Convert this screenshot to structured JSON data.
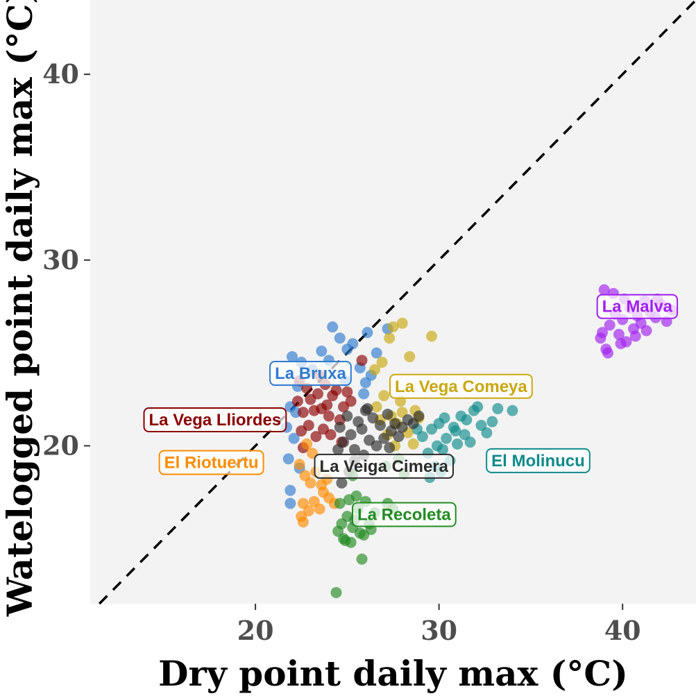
{
  "chart_data": {
    "type": "scatter",
    "xlabel": "Dry point daily max (°C)",
    "ylabel": "Watelogged point daily max (°C)",
    "xlim": [
      11,
      44
    ],
    "ylim": [
      11.5,
      44
    ],
    "xticks": [
      20,
      30,
      40
    ],
    "yticks": [
      20,
      30,
      40
    ],
    "grid": false,
    "reference_line": "y = x (dashed)",
    "series": [
      {
        "name": "El Molinucu",
        "color": "#0e8a8a",
        "label_pos": [
          35.4,
          19.2
        ],
        "points": [
          [
            29.1,
            20.5
          ],
          [
            29.4,
            19.6
          ],
          [
            29.6,
            20.9
          ],
          [
            29.8,
            18.9
          ],
          [
            30.0,
            21.2
          ],
          [
            30.2,
            19.8
          ],
          [
            30.4,
            20.4
          ],
          [
            30.6,
            19.2
          ],
          [
            30.8,
            21.0
          ],
          [
            31.0,
            20.1
          ],
          [
            31.2,
            21.6
          ],
          [
            31.4,
            20.6
          ],
          [
            31.7,
            20.2
          ],
          [
            31.9,
            21.9
          ],
          [
            32.1,
            22.1
          ],
          [
            32.3,
            21.1
          ],
          [
            32.6,
            20.7
          ],
          [
            32.9,
            21.3
          ],
          [
            33.2,
            22.0
          ],
          [
            34.0,
            21.9
          ],
          [
            29.5,
            18.3
          ],
          [
            30.1,
            18.6
          ],
          [
            28.8,
            20.9
          ],
          [
            30.3,
            21.5
          ],
          [
            31.5,
            21.4
          ],
          [
            30.9,
            20.8
          ],
          [
            29.9,
            20.0
          ]
        ]
      },
      {
        "name": "La Malva",
        "color": "#a020f0",
        "label_pos": [
          40.8,
          27.5
        ],
        "points": [
          [
            39.0,
            28.4
          ],
          [
            39.5,
            28.2
          ],
          [
            38.8,
            25.8
          ],
          [
            39.1,
            25.2
          ],
          [
            39.3,
            26.5
          ],
          [
            39.6,
            27.1
          ],
          [
            39.8,
            26.0
          ],
          [
            40.0,
            26.8
          ],
          [
            40.2,
            25.6
          ],
          [
            40.4,
            27.4
          ],
          [
            40.6,
            26.3
          ],
          [
            40.8,
            27.0
          ],
          [
            41.0,
            26.6
          ],
          [
            41.2,
            27.8
          ],
          [
            41.5,
            27.2
          ],
          [
            41.8,
            26.9
          ],
          [
            42.1,
            27.6
          ],
          [
            42.4,
            26.7
          ],
          [
            42.7,
            27.3
          ],
          [
            39.2,
            25.0
          ],
          [
            39.9,
            25.5
          ],
          [
            40.7,
            25.9
          ],
          [
            41.3,
            26.2
          ],
          [
            40.1,
            27.9
          ],
          [
            38.9,
            26.1
          ],
          [
            41.9,
            27.9
          ]
        ]
      },
      {
        "name": "La Bruxa",
        "color": "#2e7bcf",
        "label_pos": [
          23.0,
          23.9
        ],
        "points": [
          [
            22.0,
            24.8
          ],
          [
            22.3,
            23.2
          ],
          [
            21.9,
            22.1
          ],
          [
            22.5,
            24.5
          ],
          [
            23.1,
            24.1
          ],
          [
            23.6,
            25.1
          ],
          [
            24.0,
            24.6
          ],
          [
            24.2,
            26.4
          ],
          [
            24.6,
            25.8
          ],
          [
            25.0,
            25.2
          ],
          [
            25.3,
            25.5
          ],
          [
            25.7,
            24.2
          ],
          [
            26.1,
            26.1
          ],
          [
            26.3,
            23.8
          ],
          [
            26.6,
            25.0
          ],
          [
            27.2,
            26.3
          ],
          [
            21.8,
            19.3
          ],
          [
            22.1,
            20.4
          ],
          [
            21.7,
            21.0
          ],
          [
            22.4,
            18.8
          ],
          [
            21.9,
            17.6
          ],
          [
            21.9,
            16.9
          ],
          [
            22.2,
            21.8
          ],
          [
            24.9,
            23.5
          ],
          [
            25.9,
            22.8
          ],
          [
            26.0,
            23.4
          ]
        ]
      },
      {
        "name": "La Vega Comeya",
        "color": "#c9a80e",
        "label_pos": [
          31.2,
          23.2
        ],
        "points": [
          [
            26.9,
            24.5
          ],
          [
            27.3,
            25.8
          ],
          [
            27.5,
            26.4
          ],
          [
            28.0,
            26.6
          ],
          [
            28.4,
            24.8
          ],
          [
            29.6,
            25.9
          ],
          [
            26.6,
            22.1
          ],
          [
            27.0,
            22.7
          ],
          [
            27.4,
            21.6
          ],
          [
            27.7,
            21.2
          ],
          [
            28.0,
            21.8
          ],
          [
            28.3,
            20.7
          ],
          [
            28.6,
            20.1
          ],
          [
            28.9,
            21.5
          ],
          [
            27.2,
            20.6
          ],
          [
            26.8,
            21.4
          ],
          [
            28.7,
            21.9
          ],
          [
            27.6,
            20.0
          ],
          [
            27.9,
            22.4
          ],
          [
            26.5,
            24.1
          ]
        ]
      },
      {
        "name": "La Vega Lliordes",
        "color": "#8b0000",
        "label_pos": [
          17.8,
          21.4
        ],
        "points": [
          [
            22.3,
            22.4
          ],
          [
            22.6,
            21.8
          ],
          [
            22.8,
            23.1
          ],
          [
            23.0,
            22.5
          ],
          [
            23.2,
            21.9
          ],
          [
            23.4,
            22.8
          ],
          [
            23.6,
            22.0
          ],
          [
            23.8,
            23.3
          ],
          [
            24.0,
            21.6
          ],
          [
            24.2,
            22.7
          ],
          [
            24.4,
            23.0
          ],
          [
            24.6,
            21.4
          ],
          [
            24.8,
            22.1
          ],
          [
            25.0,
            22.9
          ],
          [
            22.5,
            20.8
          ],
          [
            22.9,
            21.1
          ],
          [
            23.3,
            20.5
          ],
          [
            22.6,
            19.9
          ],
          [
            23.7,
            20.9
          ],
          [
            24.1,
            20.6
          ],
          [
            22.4,
            23.5
          ],
          [
            23.5,
            23.8
          ],
          [
            25.2,
            22.4
          ],
          [
            25.8,
            24.6
          ],
          [
            24.7,
            20.2
          ],
          [
            23.9,
            22.2
          ]
        ]
      },
      {
        "name": "El Riotuertu",
        "color": "#ff8c00",
        "label_pos": [
          17.6,
          19.1
        ],
        "points": [
          [
            22.5,
            16.2
          ],
          [
            22.6,
            16.9
          ],
          [
            22.9,
            16.5
          ],
          [
            23.2,
            17.0
          ],
          [
            23.5,
            16.6
          ],
          [
            23.7,
            17.5
          ],
          [
            24.0,
            17.2
          ],
          [
            22.7,
            18.4
          ],
          [
            23.0,
            18.0
          ],
          [
            23.3,
            18.6
          ],
          [
            23.6,
            17.9
          ],
          [
            22.4,
            19.0
          ],
          [
            23.9,
            18.2
          ],
          [
            22.8,
            20.1
          ],
          [
            22.6,
            15.9
          ],
          [
            24.3,
            16.9
          ],
          [
            23.1,
            19.6
          ]
        ]
      },
      {
        "name": "La Veiga Cimera",
        "color": "#2b2b2b",
        "label_pos": [
          27.0,
          18.9
        ],
        "points": [
          [
            24.6,
            21.0
          ],
          [
            24.8,
            20.2
          ],
          [
            25.0,
            21.6
          ],
          [
            25.2,
            20.6
          ],
          [
            25.4,
            19.8
          ],
          [
            25.6,
            21.3
          ],
          [
            25.8,
            20.9
          ],
          [
            26.0,
            21.9
          ],
          [
            26.2,
            20.3
          ],
          [
            26.4,
            21.5
          ],
          [
            26.6,
            20.0
          ],
          [
            26.8,
            21.1
          ],
          [
            27.0,
            20.4
          ],
          [
            27.2,
            21.7
          ],
          [
            27.4,
            20.8
          ],
          [
            27.6,
            21.2
          ],
          [
            27.8,
            20.5
          ],
          [
            28.0,
            21.0
          ],
          [
            28.3,
            21.4
          ],
          [
            28.6,
            21.2
          ],
          [
            28.9,
            21.6
          ],
          [
            24.7,
            18.0
          ],
          [
            25.1,
            18.6
          ],
          [
            25.4,
            19.2
          ],
          [
            24.5,
            19.8
          ],
          [
            25.9,
            19.5
          ],
          [
            26.1,
            22.0
          ],
          [
            27.3,
            19.9
          ]
        ]
      },
      {
        "name": "La Recoleta",
        "color": "#228b22",
        "label_pos": [
          28.1,
          16.3
        ],
        "points": [
          [
            24.4,
            12.1
          ],
          [
            25.8,
            13.9
          ],
          [
            24.5,
            15.4
          ],
          [
            24.8,
            15.0
          ],
          [
            25.0,
            16.2
          ],
          [
            25.3,
            15.6
          ],
          [
            25.6,
            16.6
          ],
          [
            25.9,
            15.2
          ],
          [
            26.2,
            15.8
          ],
          [
            26.5,
            16.4
          ],
          [
            24.6,
            16.9
          ],
          [
            25.1,
            17.1
          ],
          [
            25.4,
            16.0
          ],
          [
            24.9,
            14.9
          ],
          [
            25.2,
            14.8
          ],
          [
            25.7,
            15.3
          ],
          [
            26.0,
            17.0
          ],
          [
            26.3,
            15.5
          ],
          [
            24.7,
            15.8
          ],
          [
            25.5,
            17.3
          ],
          [
            27.2,
            16.9
          ],
          [
            27.5,
            16.6
          ],
          [
            25.3,
            18.4
          ],
          [
            27.1,
            18.9
          ],
          [
            28.1,
            18.5
          ],
          [
            27.8,
            19.3
          ]
        ]
      }
    ]
  }
}
